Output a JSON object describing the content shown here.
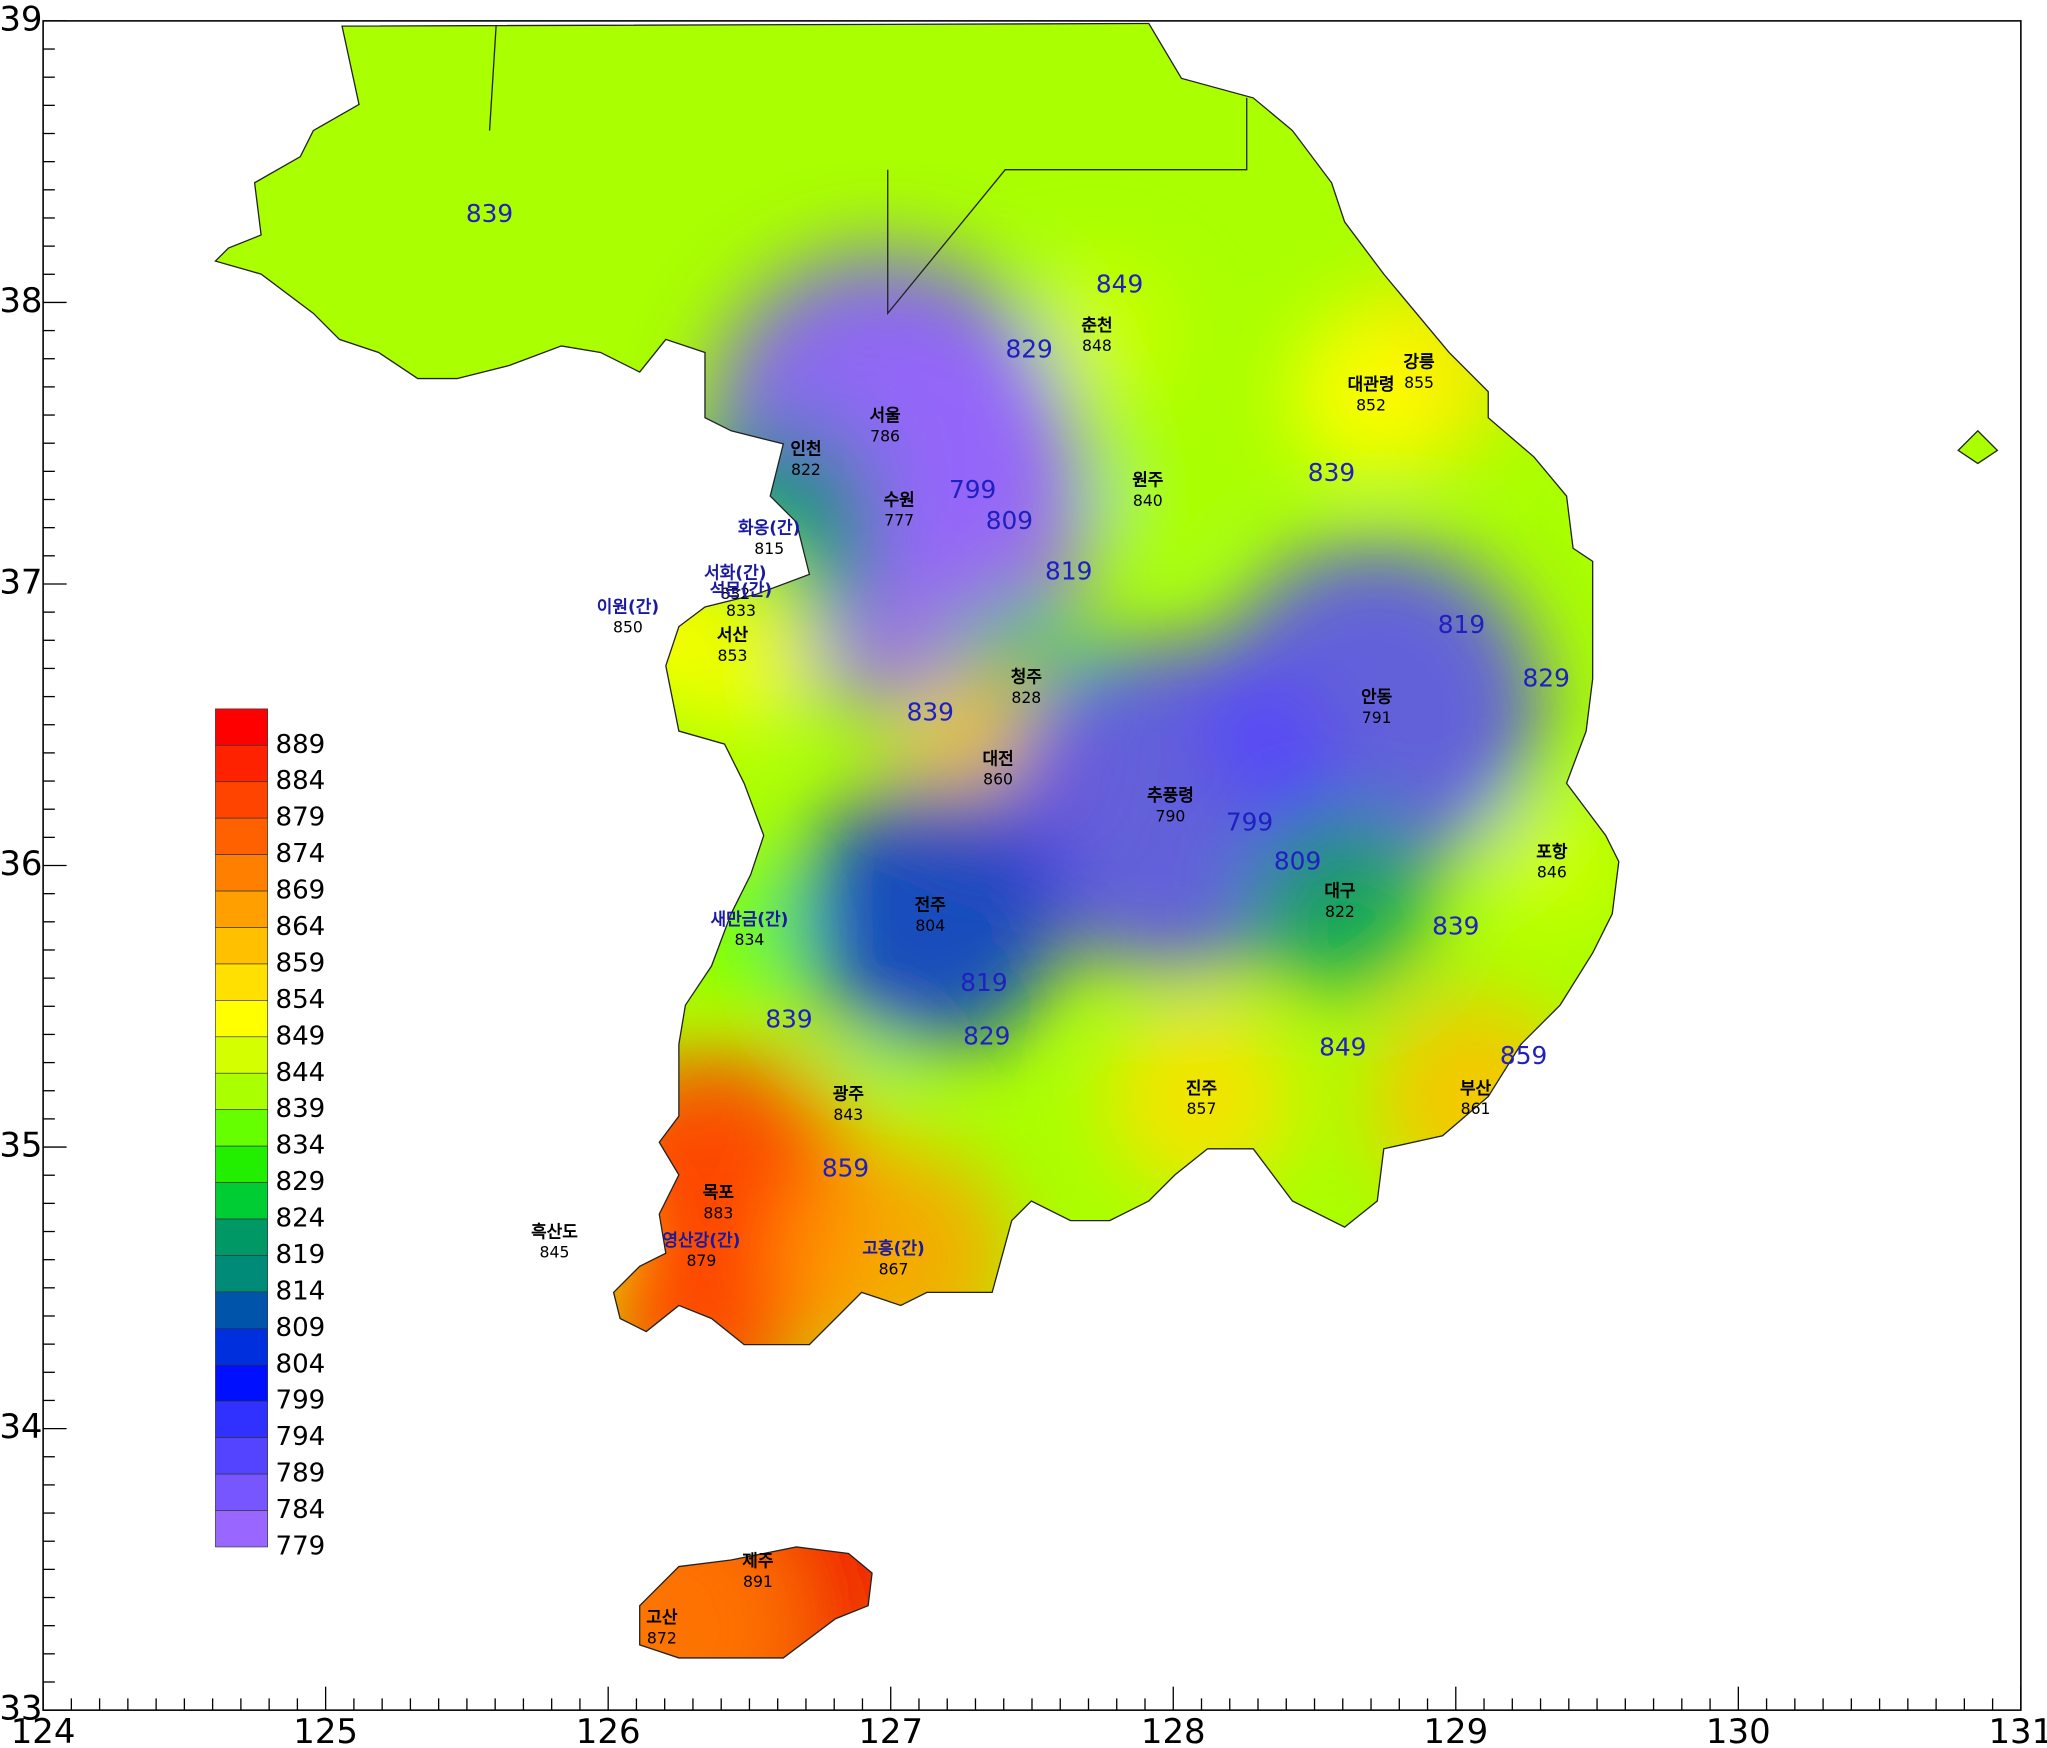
{
  "chart_data": {
    "type": "map",
    "xlim": [
      124,
      131
    ],
    "ylim": [
      33,
      39
    ],
    "xticks": [
      124,
      125,
      126,
      127,
      128,
      129,
      130,
      131
    ],
    "yticks": [
      33,
      34,
      35,
      36,
      37,
      38,
      39
    ],
    "land_color": "#aaff00",
    "colorbar": {
      "levels": [
        889,
        884,
        879,
        874,
        869,
        864,
        859,
        854,
        849,
        844,
        839,
        834,
        829,
        824,
        819,
        814,
        809,
        804,
        799,
        794,
        789,
        784,
        779
      ],
      "colors": [
        "#ff0000",
        "#ff2200",
        "#ff4400",
        "#ff6000",
        "#ff8000",
        "#ffa000",
        "#ffc000",
        "#ffe000",
        "#ffff00",
        "#d4ff00",
        "#aaff00",
        "#66ff00",
        "#22ee00",
        "#00cc33",
        "#009966",
        "#008a78",
        "#0055aa",
        "#0030dd",
        "#0010ff",
        "#3030ff",
        "#5544ff",
        "#7755ff",
        "#9966ff"
      ]
    },
    "stations": [
      {
        "name": "춘천",
        "value": 848,
        "lon": 127.73,
        "lat": 37.88,
        "color": "#000000"
      },
      {
        "name": "강릉",
        "value": 855,
        "lon": 128.87,
        "lat": 37.75,
        "color": "#000000"
      },
      {
        "name": "대관령",
        "value": 852,
        "lon": 128.7,
        "lat": 37.67,
        "color": "#000000"
      },
      {
        "name": "서울",
        "value": 786,
        "lon": 126.98,
        "lat": 37.56,
        "color": "#000000"
      },
      {
        "name": "인천",
        "value": 822,
        "lon": 126.7,
        "lat": 37.44,
        "color": "#000000"
      },
      {
        "name": "수원",
        "value": 777,
        "lon": 127.03,
        "lat": 37.26,
        "color": "#000000"
      },
      {
        "name": "원주",
        "value": 840,
        "lon": 127.91,
        "lat": 37.33,
        "color": "#000000"
      },
      {
        "name": "화옹(간)",
        "value": 815,
        "lon": 126.57,
        "lat": 37.16,
        "color": "#1a1aa0"
      },
      {
        "name": "서화(간)",
        "value": 832,
        "lon": 126.45,
        "lat": 37.0,
        "color": "#1a1aa0"
      },
      {
        "name": "석문(간)",
        "value": 833,
        "lon": 126.47,
        "lat": 36.94,
        "color": "#1a1aa0"
      },
      {
        "name": "이원(간)",
        "value": 850,
        "lon": 126.07,
        "lat": 36.88,
        "color": "#1a1aa0"
      },
      {
        "name": "서산",
        "value": 853,
        "lon": 126.44,
        "lat": 36.78,
        "color": "#000000"
      },
      {
        "name": "청주",
        "value": 828,
        "lon": 127.48,
        "lat": 36.63,
        "color": "#000000"
      },
      {
        "name": "대전",
        "value": 860,
        "lon": 127.38,
        "lat": 36.34,
        "color": "#000000"
      },
      {
        "name": "안동",
        "value": 791,
        "lon": 128.72,
        "lat": 36.56,
        "color": "#000000"
      },
      {
        "name": "추풍령",
        "value": 790,
        "lon": 127.99,
        "lat": 36.21,
        "color": "#000000"
      },
      {
        "name": "포항",
        "value": 846,
        "lon": 129.34,
        "lat": 36.01,
        "color": "#000000"
      },
      {
        "name": "대구",
        "value": 822,
        "lon": 128.59,
        "lat": 35.87,
        "color": "#000000"
      },
      {
        "name": "새만금(간)",
        "value": 834,
        "lon": 126.5,
        "lat": 35.77,
        "color": "#1a1aa0"
      },
      {
        "name": "전주",
        "value": 804,
        "lon": 127.14,
        "lat": 35.82,
        "color": "#000000"
      },
      {
        "name": "광주",
        "value": 843,
        "lon": 126.85,
        "lat": 35.15,
        "color": "#000000"
      },
      {
        "name": "진주",
        "value": 857,
        "lon": 128.1,
        "lat": 35.17,
        "color": "#000000"
      },
      {
        "name": "부산",
        "value": 861,
        "lon": 129.07,
        "lat": 35.17,
        "color": "#000000"
      },
      {
        "name": "목포",
        "value": 883,
        "lon": 126.39,
        "lat": 34.8,
        "color": "#000000"
      },
      {
        "name": "영산강(간)",
        "value": 879,
        "lon": 126.33,
        "lat": 34.63,
        "color": "#1a1aa0"
      },
      {
        "name": "흑산도",
        "value": 845,
        "lon": 125.81,
        "lat": 34.66,
        "color": "#000000"
      },
      {
        "name": "고흥(간)",
        "value": 867,
        "lon": 127.01,
        "lat": 34.6,
        "color": "#1a1aa0"
      },
      {
        "name": "제주",
        "value": 891,
        "lon": 126.53,
        "lat": 33.49,
        "color": "#000000"
      },
      {
        "name": "고산",
        "value": 872,
        "lon": 126.19,
        "lat": 33.29,
        "color": "#000000"
      }
    ],
    "contour_labels": [
      {
        "value": 839,
        "lon": 125.58,
        "lat": 38.31
      },
      {
        "value": 849,
        "lon": 127.81,
        "lat": 38.06
      },
      {
        "value": 829,
        "lon": 127.49,
        "lat": 37.83
      },
      {
        "value": 799,
        "lon": 127.29,
        "lat": 37.33
      },
      {
        "value": 809,
        "lon": 127.42,
        "lat": 37.22
      },
      {
        "value": 819,
        "lon": 127.63,
        "lat": 37.04
      },
      {
        "value": 839,
        "lon": 128.56,
        "lat": 37.39
      },
      {
        "value": 819,
        "lon": 129.02,
        "lat": 36.85
      },
      {
        "value": 829,
        "lon": 129.32,
        "lat": 36.66
      },
      {
        "value": 839,
        "lon": 127.14,
        "lat": 36.54
      },
      {
        "value": 799,
        "lon": 128.27,
        "lat": 36.15
      },
      {
        "value": 809,
        "lon": 128.44,
        "lat": 36.01
      },
      {
        "value": 839,
        "lon": 129.0,
        "lat": 35.78
      },
      {
        "value": 819,
        "lon": 127.33,
        "lat": 35.58
      },
      {
        "value": 839,
        "lon": 126.64,
        "lat": 35.45
      },
      {
        "value": 829,
        "lon": 127.34,
        "lat": 35.39
      },
      {
        "value": 849,
        "lon": 128.6,
        "lat": 35.35
      },
      {
        "value": 859,
        "lon": 129.24,
        "lat": 35.32
      },
      {
        "value": 859,
        "lon": 126.84,
        "lat": 34.92
      }
    ]
  }
}
